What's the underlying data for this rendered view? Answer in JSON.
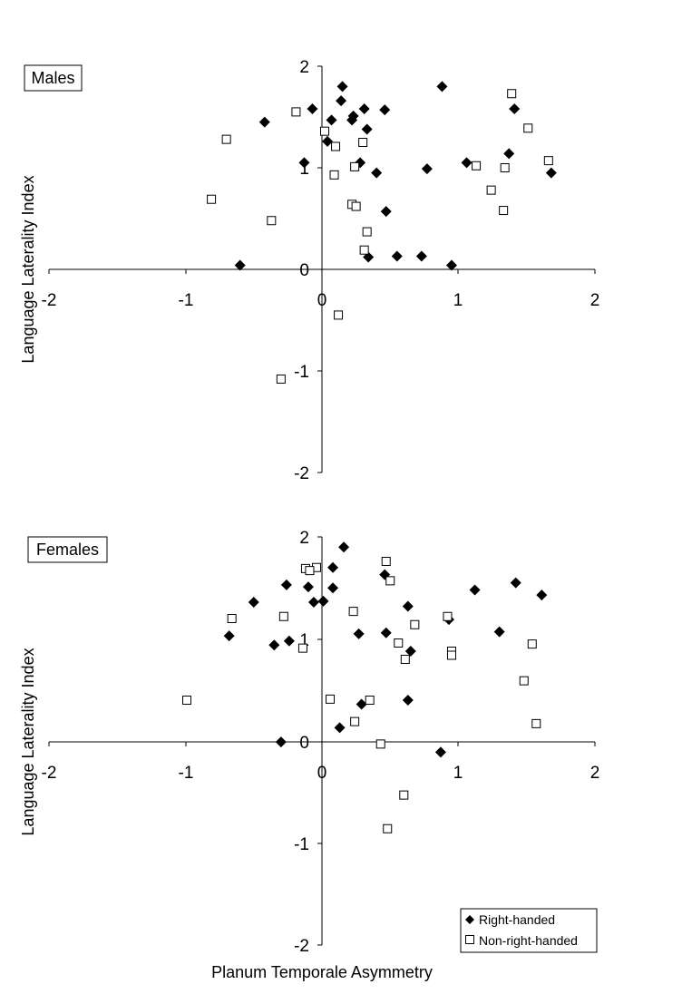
{
  "x_axis_title": "Planum Temporale Asymmetry",
  "chart_data": [
    {
      "type": "scatter",
      "panel_label": "Males",
      "ylabel": "Language Laterality Index",
      "xlim": [
        -2,
        2
      ],
      "ylim": [
        -2,
        2
      ],
      "x_ticks": [
        "-2",
        "-1",
        "0",
        "1",
        "2"
      ],
      "y_ticks": [
        "2",
        "1",
        "0",
        "-1",
        "-2"
      ],
      "series": [
        {
          "marker": "filled-diamond",
          "color": "#000000",
          "points": [
            [
              0.15,
              1.8
            ],
            [
              0.88,
              1.8
            ],
            [
              0.14,
              1.66
            ],
            [
              -0.07,
              1.58
            ],
            [
              0.31,
              1.58
            ],
            [
              0.46,
              1.57
            ],
            [
              1.41,
              1.58
            ],
            [
              -0.42,
              1.45
            ],
            [
              0.07,
              1.47
            ],
            [
              0.23,
              1.51
            ],
            [
              0.22,
              1.47
            ],
            [
              0.33,
              1.38
            ],
            [
              0.04,
              1.26
            ],
            [
              1.37,
              1.14
            ],
            [
              -0.13,
              1.05
            ],
            [
              0.28,
              1.05
            ],
            [
              1.06,
              1.05
            ],
            [
              0.4,
              0.95
            ],
            [
              0.77,
              0.99
            ],
            [
              1.68,
              0.95
            ],
            [
              0.47,
              0.57
            ],
            [
              -0.6,
              0.04
            ],
            [
              0.34,
              0.12
            ],
            [
              0.55,
              0.13
            ],
            [
              0.73,
              0.13
            ],
            [
              0.95,
              0.04
            ]
          ]
        },
        {
          "marker": "open-square",
          "color": "#000000",
          "points": [
            [
              -0.19,
              1.55
            ],
            [
              1.39,
              1.73
            ],
            [
              -0.7,
              1.28
            ],
            [
              0.02,
              1.36
            ],
            [
              1.51,
              1.39
            ],
            [
              0.1,
              1.21
            ],
            [
              0.3,
              1.25
            ],
            [
              0.24,
              1.01
            ],
            [
              0.09,
              0.93
            ],
            [
              1.13,
              1.02
            ],
            [
              1.34,
              1.0
            ],
            [
              1.66,
              1.07
            ],
            [
              -0.81,
              0.69
            ],
            [
              1.24,
              0.78
            ],
            [
              0.22,
              0.64
            ],
            [
              0.25,
              0.62
            ],
            [
              1.33,
              0.58
            ],
            [
              -0.37,
              0.48
            ],
            [
              0.33,
              0.37
            ],
            [
              0.31,
              0.19
            ],
            [
              0.12,
              -0.45
            ],
            [
              -0.3,
              -1.08
            ]
          ]
        }
      ]
    },
    {
      "type": "scatter",
      "panel_label": "Females",
      "ylabel": "Language Laterality Index",
      "xlim": [
        -2,
        2
      ],
      "ylim": [
        -2,
        2
      ],
      "x_ticks": [
        "-2",
        "-1",
        "0",
        "1",
        "2"
      ],
      "y_ticks": [
        "2",
        "1",
        "0",
        "-1",
        "-2"
      ],
      "series": [
        {
          "name": "Right-handed",
          "marker": "filled-diamond",
          "color": "#000000",
          "points": [
            [
              0.16,
              1.9
            ],
            [
              0.08,
              1.7
            ],
            [
              0.46,
              1.63
            ],
            [
              -0.1,
              1.51
            ],
            [
              -0.26,
              1.53
            ],
            [
              1.42,
              1.55
            ],
            [
              0.08,
              1.5
            ],
            [
              1.12,
              1.48
            ],
            [
              1.61,
              1.43
            ],
            [
              -0.5,
              1.36
            ],
            [
              -0.06,
              1.36
            ],
            [
              0.01,
              1.37
            ],
            [
              0.63,
              1.32
            ],
            [
              0.93,
              1.19
            ],
            [
              -0.68,
              1.03
            ],
            [
              0.27,
              1.05
            ],
            [
              0.47,
              1.06
            ],
            [
              1.3,
              1.07
            ],
            [
              -0.35,
              0.94
            ],
            [
              -0.24,
              0.98
            ],
            [
              0.65,
              0.88
            ],
            [
              0.29,
              0.36
            ],
            [
              0.63,
              0.4
            ],
            [
              0.13,
              0.13
            ],
            [
              -0.3,
              -0.01
            ],
            [
              0.87,
              -0.11
            ]
          ]
        },
        {
          "name": "Non-right-handed",
          "marker": "open-square",
          "color": "#000000",
          "points": [
            [
              0.47,
              1.76
            ],
            [
              -0.12,
              1.69
            ],
            [
              -0.04,
              1.7
            ],
            [
              -0.09,
              1.67
            ],
            [
              0.5,
              1.57
            ],
            [
              0.23,
              1.27
            ],
            [
              -0.28,
              1.22
            ],
            [
              -0.66,
              1.2
            ],
            [
              0.68,
              1.14
            ],
            [
              0.92,
              1.22
            ],
            [
              -0.14,
              0.91
            ],
            [
              0.56,
              0.96
            ],
            [
              1.54,
              0.95
            ],
            [
              0.95,
              0.88
            ],
            [
              0.95,
              0.84
            ],
            [
              0.61,
              0.8
            ],
            [
              1.48,
              0.59
            ],
            [
              -0.99,
              0.4
            ],
            [
              0.06,
              0.41
            ],
            [
              0.35,
              0.4
            ],
            [
              0.24,
              0.19
            ],
            [
              1.57,
              0.17
            ],
            [
              0.43,
              -0.03
            ],
            [
              0.6,
              -0.53
            ],
            [
              0.48,
              -0.86
            ]
          ]
        }
      ]
    }
  ]
}
